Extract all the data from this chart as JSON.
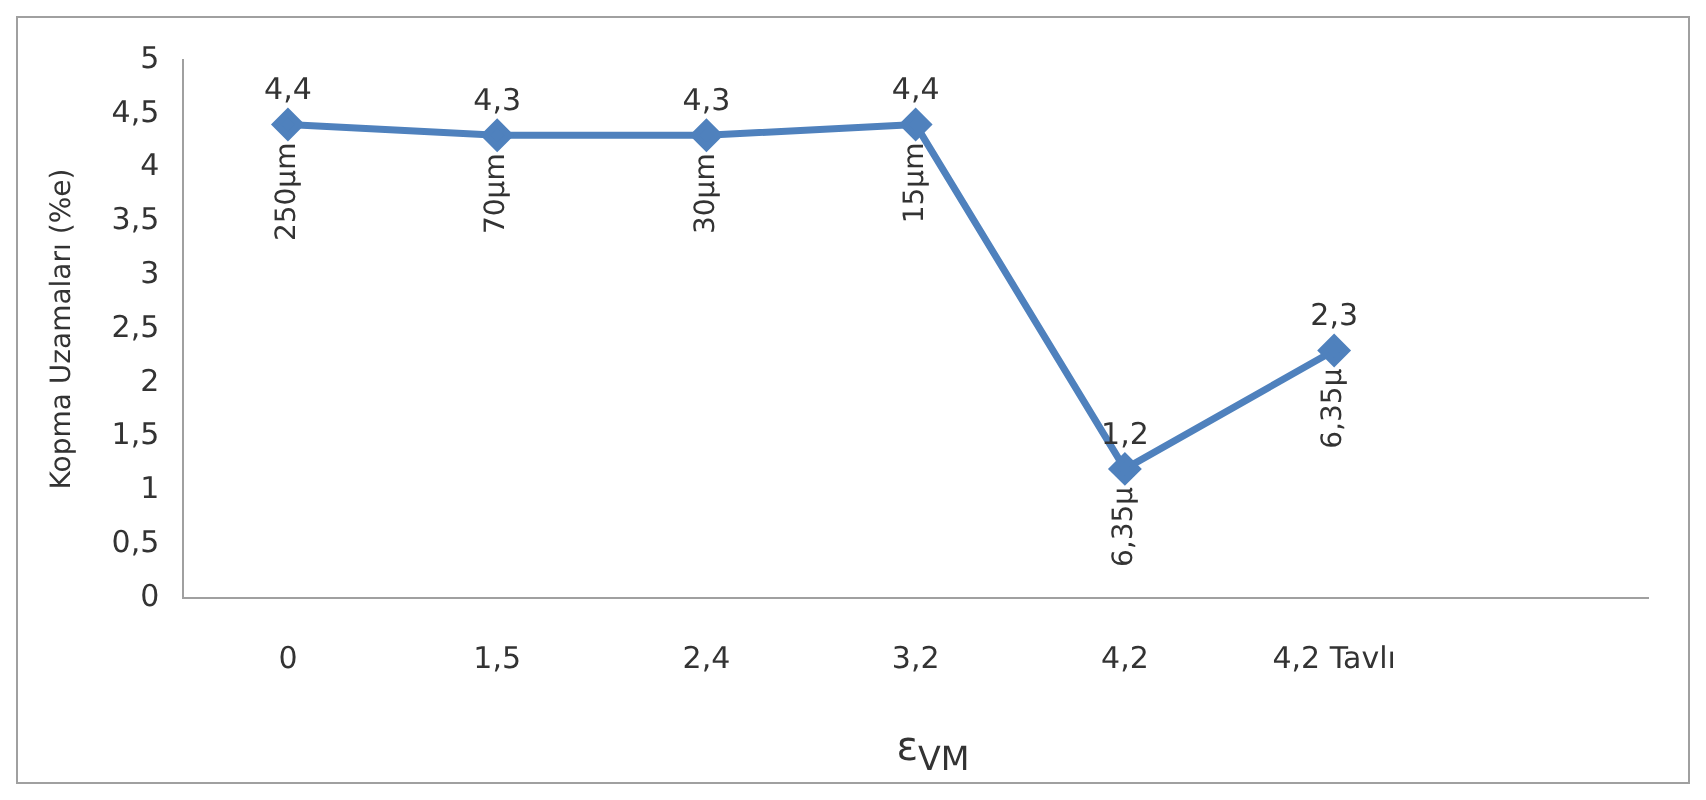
{
  "chart_data": {
    "type": "line",
    "ylabel": "Kopma Uzamaları (%e)",
    "xlabel": "ε$_{VM}$",
    "categories": [
      "0",
      "1,5",
      "2,4",
      "3,2",
      "4,2",
      "4,2 Tavlı",
      null
    ],
    "series": [
      {
        "color": "#4f81bd",
        "values": [
          4.4,
          4.3,
          4.3,
          4.4,
          1.2,
          2.3,
          null
        ]
      }
    ],
    "value_labels": [
      "4,4",
      "4,3",
      "4,3",
      "4,4",
      "1,2",
      "2,3",
      null
    ],
    "annotations": [
      {
        "text": "250µm",
        "x": "0",
        "y": 4.4
      },
      {
        "text": "70µm",
        "x": "1,5",
        "y": 4.3
      },
      {
        "text": "30µm",
        "x": "2,4",
        "y": 4.3
      },
      {
        "text": "15µm",
        "x": "3,2",
        "y": 4.4
      },
      {
        "text": "6,35µ",
        "x": "4,2",
        "y": 1.2
      },
      {
        "text": "6,35µ",
        "x": "4,2 Tavlı",
        "y": 2.3
      }
    ],
    "ylim": [
      0,
      5
    ],
    "yticks": [
      0,
      {
        "value": 0.5,
        "label": "0,5"
      },
      1,
      {
        "value": 1.5,
        "label": "1,5"
      },
      2,
      {
        "value": 2.5,
        "label": "2,5"
      },
      3,
      {
        "value": 3.5,
        "label": "3,5"
      },
      4,
      {
        "value": 4.5,
        "label": "4,5"
      },
      5
    ],
    "grid": false,
    "legend": false,
    "marker": "diamond",
    "line_style": "solid"
  }
}
